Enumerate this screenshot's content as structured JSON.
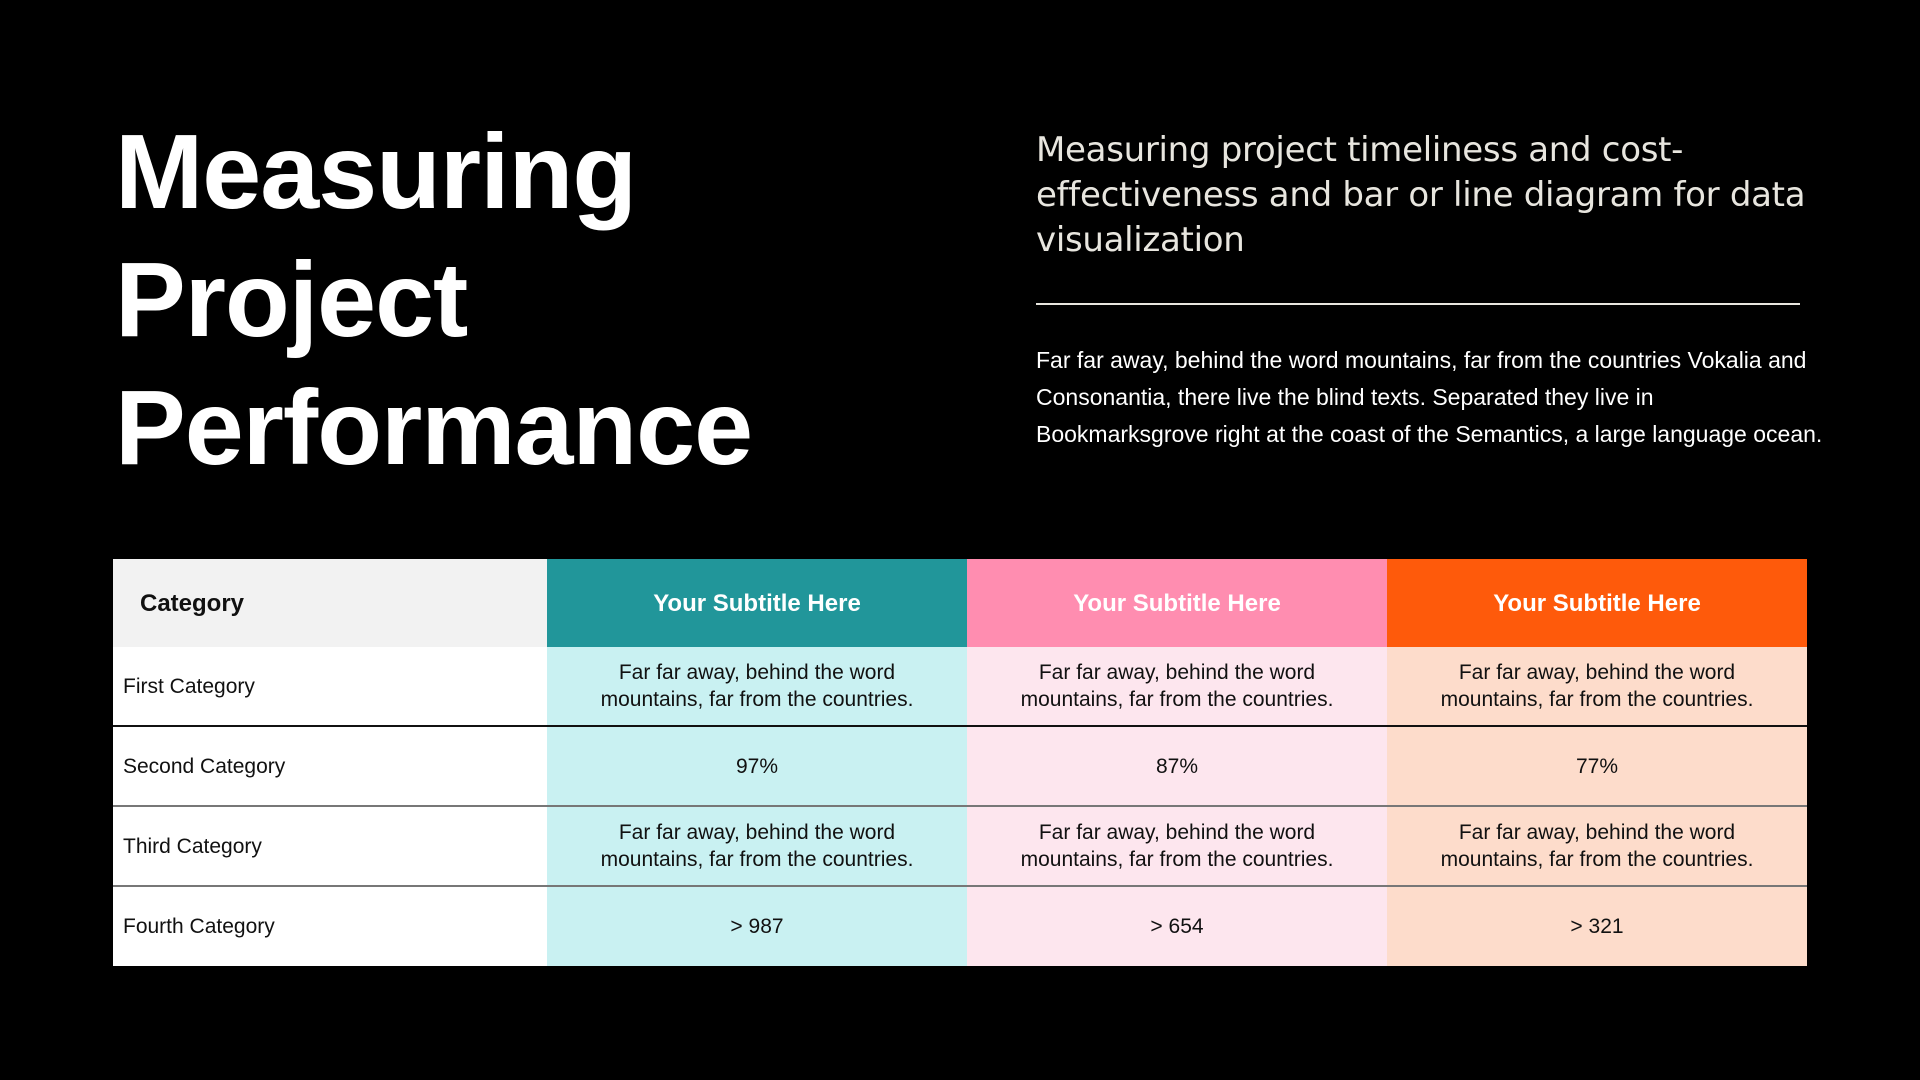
{
  "title": {
    "lines": [
      "Measuring",
      "Project",
      "Performance"
    ]
  },
  "subtitle": "Measuring project timeliness and cost-effectiveness and bar or line diagram for data visualization",
  "body": "Far far away, behind the word mountains, far from the countries Vokalia and Consonantia, there live the blind texts. Separated they live in Bookmarksgrove right at the coast of the Semantics, a large language ocean.",
  "colors": {
    "background": "#000000",
    "teal": "#21969a",
    "pink": "#ff8db0",
    "orange": "#fe5a0b",
    "teal_light": "#c9f1f2",
    "pink_light": "#fde6ee",
    "orange_light": "#fddccb",
    "header_gray": "#f2f2f2"
  },
  "table": {
    "headers": [
      "Category",
      "Your Subtitle Here",
      "Your Subtitle Here",
      "Your Subtitle Here"
    ],
    "rows": [
      {
        "label": "First Category",
        "values": [
          "Far far away, behind the word mountains, far from the countries.",
          "Far far away, behind the word mountains, far from the countries.",
          "Far far away, behind the word mountains, far from the countries."
        ]
      },
      {
        "label": "Second Category",
        "values": [
          "97%",
          "87%",
          "77%"
        ]
      },
      {
        "label": "Third Category",
        "values": [
          "Far far away, behind the word mountains, far from the countries.",
          "Far far away, behind the word mountains, far from the countries.",
          "Far far away, behind the word mountains, far from the countries."
        ]
      },
      {
        "label": "Fourth Category",
        "values": [
          "> 987",
          "> 654",
          "> 321"
        ]
      }
    ]
  }
}
